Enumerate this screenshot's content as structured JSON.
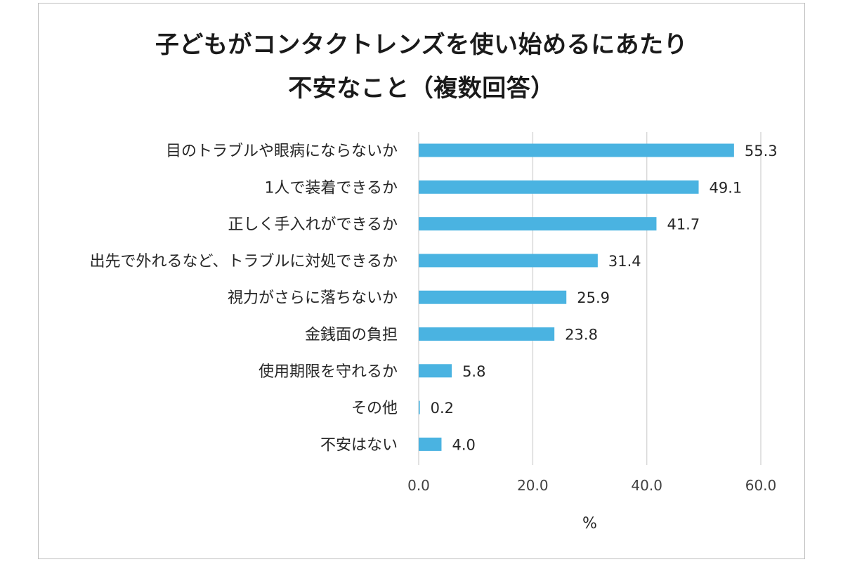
{
  "chart_data": {
    "type": "bar",
    "orientation": "horizontal",
    "title": [
      "子どもがコンタクトレンズを使い始めるにあたり",
      "不安なこと（複数回答）"
    ],
    "categories": [
      "目のトラブルや眼病にならないか",
      "1人で装着できるか",
      "正しく手入れができるか",
      "出先で外れるなど、トラブルに対処できるか",
      "視力がさらに落ちないか",
      "金銭面の負担",
      "使用期限を守れるか",
      "その他",
      "不安はない"
    ],
    "values": [
      55.3,
      49.1,
      41.7,
      31.4,
      25.9,
      23.8,
      5.8,
      0.2,
      4.0
    ],
    "value_labels": [
      "55.3",
      "49.1",
      "41.7",
      "31.4",
      "25.9",
      "23.8",
      "5.8",
      "0.2",
      "4.0"
    ],
    "xlim": [
      0,
      60
    ],
    "xticks": [
      0,
      20,
      40,
      60
    ],
    "xtick_labels": [
      "0.0",
      "20.0",
      "40.0",
      "60.0"
    ],
    "xlabel": "%",
    "grid": "vertical",
    "colors": {
      "bar": "#4ab3e1",
      "grid": "#d9d9d9",
      "frame": "#bfbfbf"
    }
  }
}
